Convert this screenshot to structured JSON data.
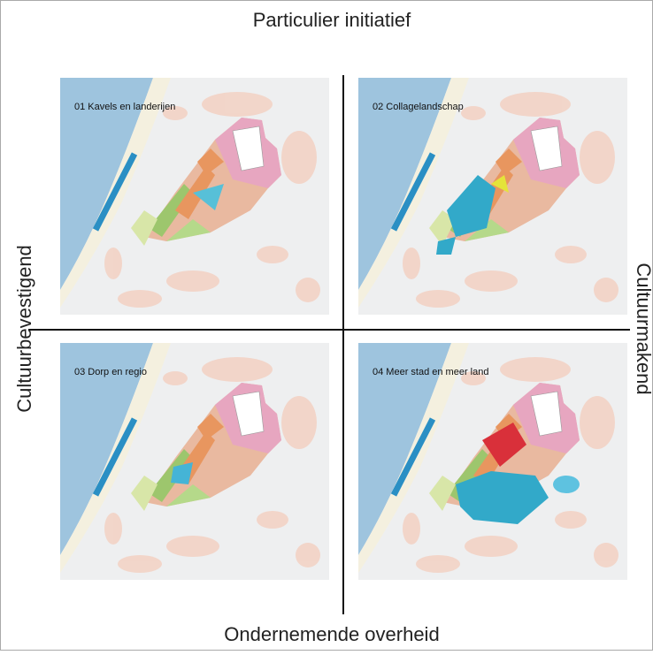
{
  "axes": {
    "top": "Particulier initiatief",
    "bottom": "Ondernemende overheid",
    "left": "Cultuurbevestigend",
    "right": "Cultuurmakend"
  },
  "quadrants": [
    {
      "label": "01  Kavels en landerijen"
    },
    {
      "label": "02  Collagelandschap"
    },
    {
      "label": "03  Dorp en regio"
    },
    {
      "label": "04  Meer stad en meer land"
    }
  ]
}
